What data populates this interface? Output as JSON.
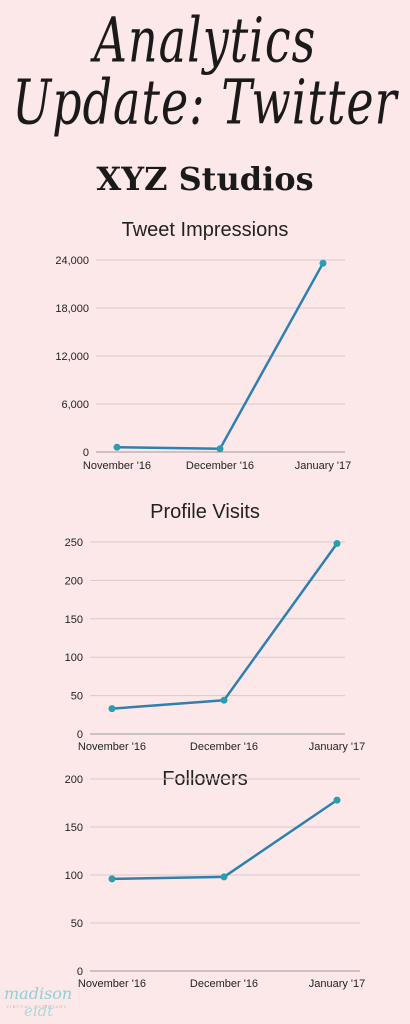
{
  "header": {
    "title_line1": "Analytics",
    "title_line2": "Update: Twitter",
    "subtitle": "XYZ Studios"
  },
  "watermark": {
    "line1": "madison",
    "line2": "VIRTUAL ASSISTANT",
    "line3": "eidt"
  },
  "colors": {
    "line": "#2f7fb0",
    "point": "#2a9db0",
    "grid": "#d9c9ca",
    "axis": "#9a9a9a"
  },
  "chart_data": [
    {
      "type": "line",
      "title": "Tweet Impressions",
      "categories": [
        "November '16",
        "December '16",
        "January '17"
      ],
      "values": [
        600,
        400,
        23600
      ],
      "ylim": [
        0,
        24000
      ],
      "yticks": [
        0,
        6000,
        12000,
        18000,
        24000
      ],
      "ytick_labels": [
        "0",
        "6,000",
        "12,000",
        "18,000",
        "24,000"
      ],
      "grid": true
    },
    {
      "type": "line",
      "title": "Profile Visits",
      "categories": [
        "November '16",
        "December '16",
        "January '17"
      ],
      "values": [
        33,
        44,
        248
      ],
      "ylim": [
        0,
        250
      ],
      "yticks": [
        0,
        50,
        100,
        150,
        200,
        250
      ],
      "ytick_labels": [
        "0",
        "50",
        "100",
        "150",
        "200",
        "250"
      ],
      "grid": true
    },
    {
      "type": "line",
      "title": "Followers",
      "categories": [
        "November '16",
        "December '16",
        "January '17"
      ],
      "values": [
        96,
        98,
        178
      ],
      "ylim": [
        0,
        200
      ],
      "yticks": [
        0,
        50,
        100,
        150,
        200
      ],
      "ytick_labels": [
        "0",
        "50",
        "100",
        "150",
        "200"
      ],
      "grid": true
    }
  ]
}
